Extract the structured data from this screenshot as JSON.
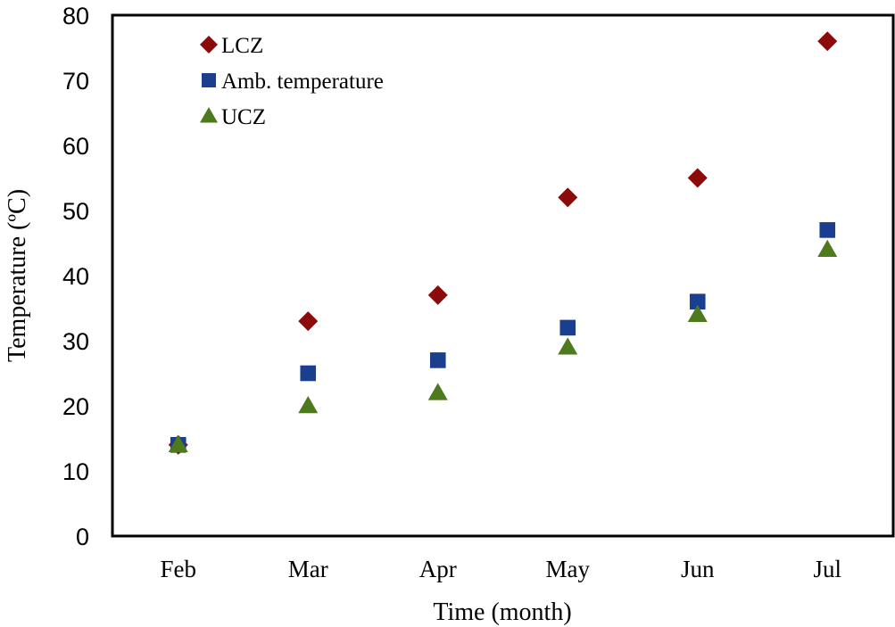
{
  "chart_data": {
    "type": "scatter",
    "title": "",
    "xlabel": "Time (month)",
    "ylabel": "Temperature (ºC)",
    "categories": [
      "Feb",
      "Mar",
      "Apr",
      "May",
      "Jun",
      "Jul"
    ],
    "ylim": [
      0,
      80
    ],
    "yticks": [
      0,
      10,
      20,
      30,
      40,
      50,
      60,
      70,
      80
    ],
    "grid": false,
    "legend_position": "top-left",
    "series": [
      {
        "name": "LCZ",
        "marker": "diamond",
        "color": "#8B0A0A",
        "values": [
          14,
          33,
          37,
          52,
          55,
          76
        ]
      },
      {
        "name": "Amb. temperature",
        "marker": "square",
        "color": "#1B3F8F",
        "values": [
          14,
          25,
          27,
          32,
          36,
          47
        ]
      },
      {
        "name": "UCZ",
        "marker": "triangle",
        "color": "#4E7A1E",
        "values": [
          14,
          20,
          22,
          29,
          34,
          44
        ]
      }
    ]
  }
}
